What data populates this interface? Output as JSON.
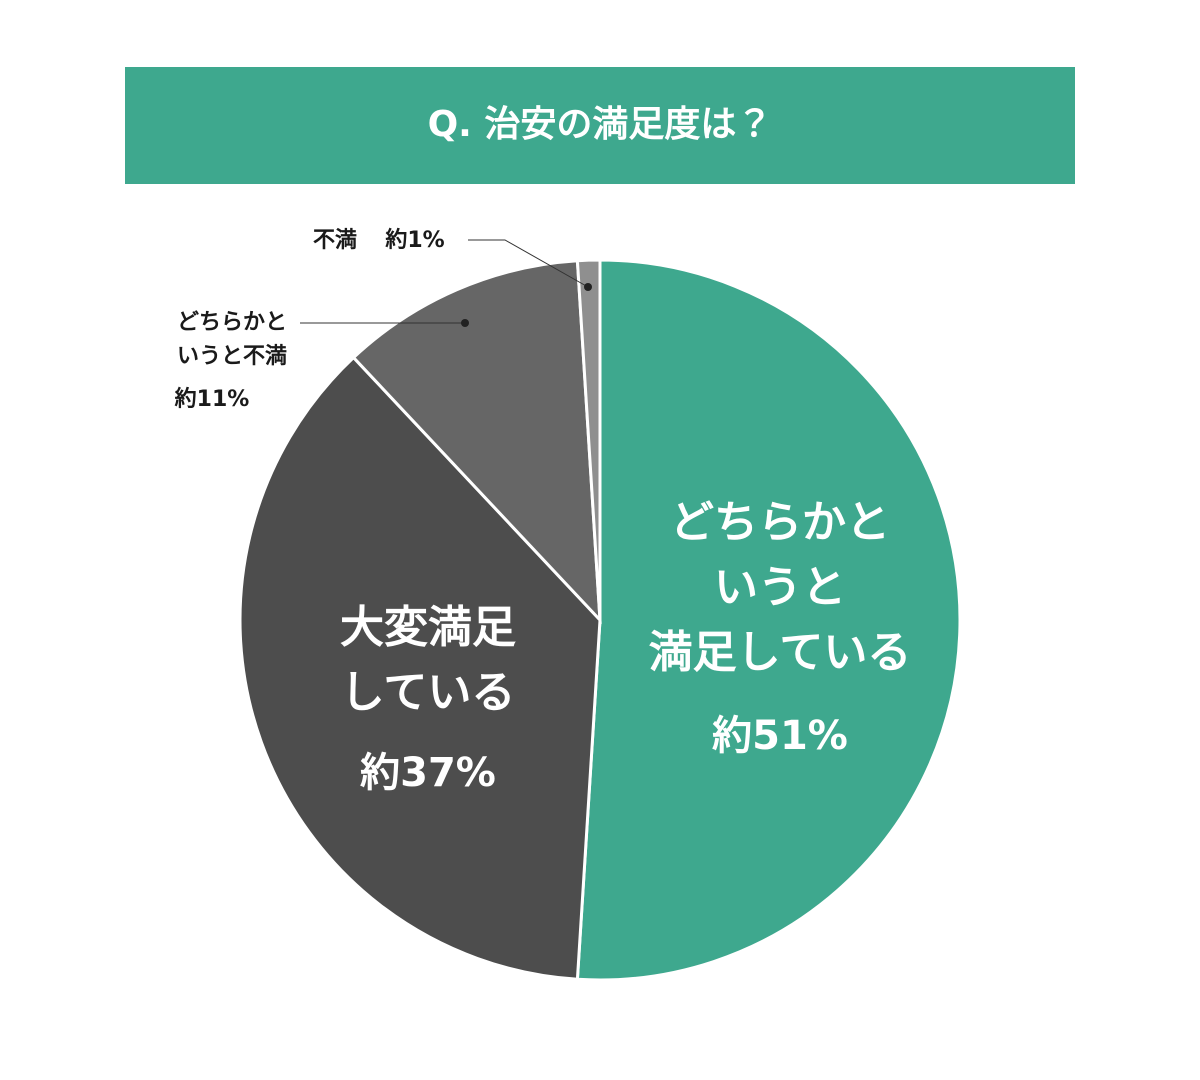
{
  "chart_data": {
    "type": "pie",
    "title": "Q. 治安の満足度は？",
    "categories": [
      [
        "どちらかと",
        "いうと",
        "満足している"
      ],
      [
        "大変満足",
        "している"
      ],
      [
        "どちらかと",
        "いうと不満"
      ],
      [
        "不満"
      ]
    ],
    "values": [
      51,
      37,
      11,
      1
    ],
    "value_labels": [
      "約51%",
      "約37%",
      "約11%",
      "約1%"
    ],
    "colors": [
      "#3ea88e",
      "#4d4d4d",
      "#666666",
      "#8f8f8f"
    ]
  }
}
